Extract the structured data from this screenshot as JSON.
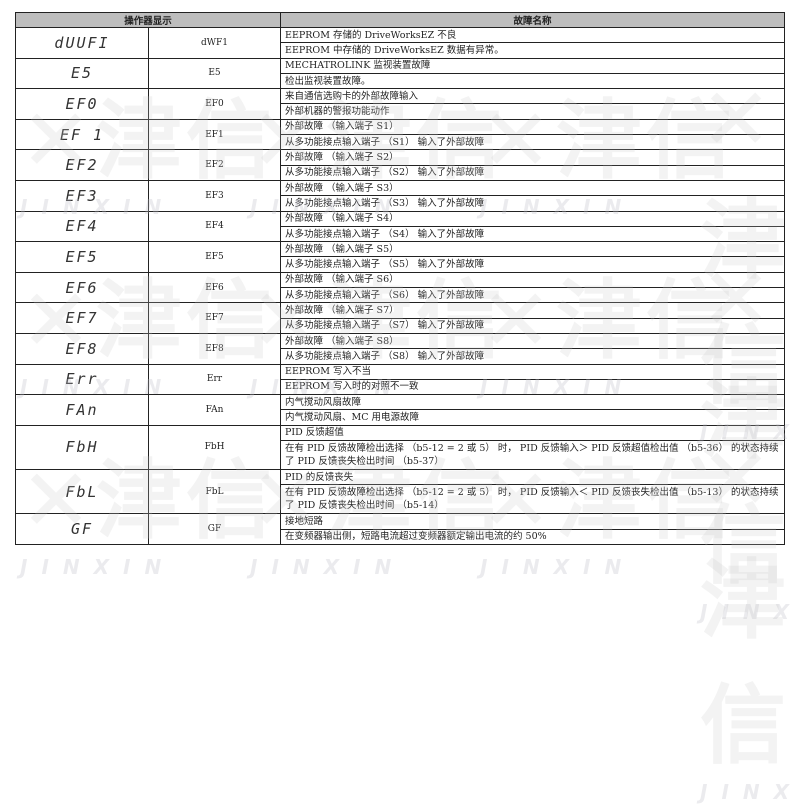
{
  "headers": {
    "display": "操作器显示",
    "name": "故障名称"
  },
  "rows": [
    {
      "display": "dUUFI",
      "code": "dWF1",
      "lines": [
        "EEPROM 存储的 DriveWorksEZ 不良",
        "EEPROM 中存储的 DriveWorksEZ 数据有异常。"
      ]
    },
    {
      "display": "E5",
      "code": "E5",
      "lines": [
        "MECHATROLINK 监视装置故障",
        "检出监视装置故障。"
      ]
    },
    {
      "display": "EF0",
      "code": "EF0",
      "lines": [
        "来自通信选购卡的外部故障输入",
        "外部机器的警报功能动作"
      ]
    },
    {
      "display": "EF 1",
      "code": "EF1",
      "lines": [
        "外部故障 （输入端子 S1）",
        "从多功能接点输入端子 （S1） 输入了外部故障"
      ]
    },
    {
      "display": "EF2",
      "code": "EF2",
      "lines": [
        "外部故障 （输入端子 S2）",
        "从多功能接点输入端子 （S2） 输入了外部故障"
      ]
    },
    {
      "display": "EF3",
      "code": "EF3",
      "lines": [
        "外部故障 （输入端子 S3）",
        "从多功能接点输入端子 （S3） 输入了外部故障"
      ]
    },
    {
      "display": "EF4",
      "code": "EF4",
      "lines": [
        "外部故障 （输入端子 S4）",
        "从多功能接点输入端子 （S4） 输入了外部故障"
      ]
    },
    {
      "display": "EF5",
      "code": "EF5",
      "lines": [
        "外部故障 （输入端子 S5）",
        "从多功能接点输入端子 （S5） 输入了外部故障"
      ]
    },
    {
      "display": "EF6",
      "code": "EF6",
      "lines": [
        "外部故障 （输入端子 S6）",
        "从多功能接点输入端子 （S6） 输入了外部故障"
      ]
    },
    {
      "display": "EF7",
      "code": "EF7",
      "lines": [
        "外部故障 （输入端子 S7）",
        "从多功能接点输入端子 （S7） 输入了外部故障"
      ]
    },
    {
      "display": "EF8",
      "code": "EF8",
      "lines": [
        "外部故障 （输入端子 S8）",
        "从多功能接点输入端子 （S8） 输入了外部故障"
      ]
    },
    {
      "display": "Err",
      "code": "Err",
      "lines": [
        "EEPROM 写入不当",
        "EEPROM 写入时的对照不一致"
      ]
    },
    {
      "display": "FAn",
      "code": "FAn",
      "lines": [
        "内气搅动风扇故障",
        "内气搅动风扇、MC 用电源故障"
      ]
    },
    {
      "display": "FbH",
      "code": "FbH",
      "lines": [
        "PID 反馈超值",
        "在有 PID 反馈故障检出选择 （b5-12 = 2 或 5） 时， PID 反馈输入＞ PID 反馈超值检出值 （b5-36） 的状态持续了 PID 反馈丧失检出时间 （b5-37）"
      ]
    },
    {
      "display": "FbL",
      "code": "FbL",
      "lines": [
        "PID 的反馈丧失",
        "在有 PID 反馈故障检出选择 （b5-12 = 2 或 5） 时， PID 反馈输入＜ PID 反馈丧失检出值 （b5-13） 的状态持续了 PID 反馈丧失检出时间 （b5-14）"
      ]
    },
    {
      "display": "GF",
      "code": "GF",
      "lines": [
        "接地短路",
        "在变频器输出侧，短路电流超过变频器额定输出电流的约 50%"
      ]
    }
  ],
  "watermark": {
    "text": "✕津信",
    "sub": "JINXIN"
  }
}
